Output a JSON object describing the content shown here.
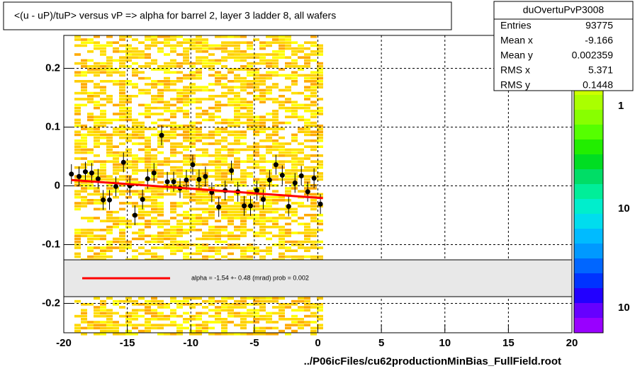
{
  "chart_data": {
    "type": "scatter",
    "title": "<(u - uP)/tuP> versus   vP => alpha for barrel 2, layer 3 ladder 8, all wafers",
    "x_label": "../P06icFiles/cu62productionMinBias_FullField.root",
    "x": [
      -19.4,
      -18.8,
      -18.3,
      -17.8,
      -17.3,
      -16.9,
      -16.4,
      -15.9,
      -15.3,
      -14.8,
      -14.4,
      -13.8,
      -13.4,
      -12.9,
      -12.3,
      -11.85,
      -11.35,
      -10.85,
      -10.35,
      -9.85,
      -9.35,
      -8.85,
      -8.35,
      -7.8,
      -7.3,
      -6.8,
      -6.3,
      -5.8,
      -5.3,
      -4.8,
      -4.3,
      -3.8,
      -3.3,
      -2.8,
      -2.3,
      -1.8,
      -1.3,
      -0.8,
      -0.3,
      0.2
    ],
    "values": [
      0.02,
      0.016,
      0.024,
      0.022,
      0.012,
      -0.024,
      -0.024,
      -0.001,
      0.04,
      0,
      -0.05,
      -0.023,
      0.012,
      0.022,
      0.086,
      0.007,
      0.007,
      -0.004,
      0.01,
      0.036,
      0.011,
      0.016,
      -0.011,
      -0.036,
      -0.008,
      0.026,
      -0.01,
      -0.034,
      -0.034,
      -0.008,
      -0.023,
      0.01,
      0.036,
      0.018,
      -0.035,
      0.005,
      0.017,
      -0.01,
      0.013,
      -0.031
    ],
    "color": "#000000",
    "fit": {
      "x": [
        -19.4,
        0.4
      ],
      "y": [
        0.01,
        -0.021
      ],
      "color": "#ff0000"
    },
    "fit_label": "alpha =   -1.54 +-  0.48 (mrad) prob = 0.002",
    "xlim": [
      -20,
      20
    ],
    "xticks": [
      -20,
      -15,
      -10,
      -5,
      0,
      5,
      10,
      15,
      20
    ],
    "ylim": [
      -0.25,
      0.25
    ],
    "yticks": [
      -0.2,
      -0.1,
      0,
      0.1,
      0.2
    ],
    "grid": true,
    "stats": {
      "title": "duOvertuPvP3008",
      "rows": [
        [
          "Entries",
          "93775"
        ],
        [
          "Mean x",
          "-9.166"
        ],
        [
          "Mean y",
          "0.002359"
        ],
        [
          "RMS x",
          "5.371"
        ],
        [
          "RMS y",
          "0.1448"
        ]
      ]
    },
    "colorbar_labels": [
      "1",
      "10",
      "10"
    ]
  }
}
